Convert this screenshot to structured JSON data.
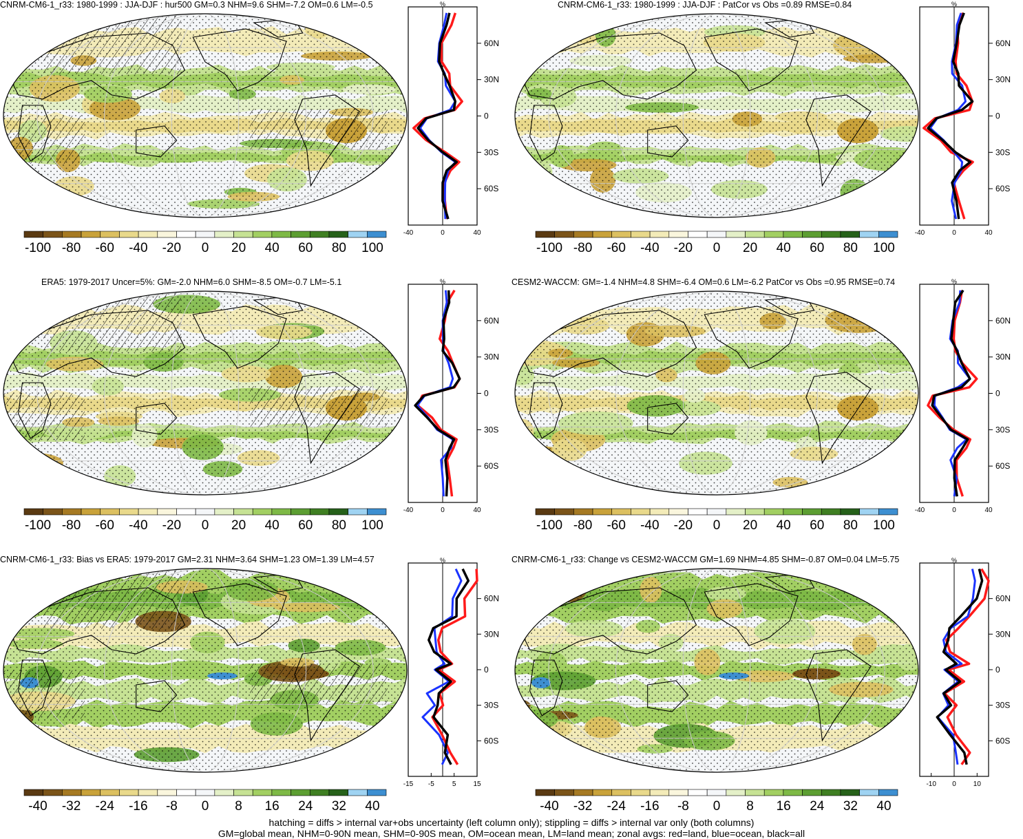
{
  "panels": [
    {
      "id": "p1",
      "title": "CNRM-CM6-1_r33: 1980-1999 : JJA-DJF : hur500 GM=0.3 NHM=9.6 SHM=-7.2 OM=0.6 LM=-0.5",
      "hatched": true,
      "zonal_unit": "%",
      "zonal_xticks": [
        "-40",
        "0",
        "40"
      ],
      "zonal_xlim": [
        -40,
        40
      ],
      "lat_ticks": [
        "60N",
        "30N",
        "0",
        "30S",
        "60S"
      ],
      "cbar_labels": [
        "-100",
        "-80",
        "-60",
        "-40",
        "-20",
        "0",
        "20",
        "40",
        "60",
        "80",
        "100"
      ]
    },
    {
      "id": "p2",
      "title": "CNRM-CM6-1_r33: 1980-1999 : JJA-DJF : PatCor vs Obs =0.89 RMSE=0.84",
      "hatched": false,
      "zonal_unit": "%",
      "zonal_xticks": [
        "-40",
        "0",
        "40"
      ],
      "zonal_xlim": [
        -40,
        40
      ],
      "lat_ticks": [
        "60N",
        "30N",
        "0",
        "30S",
        "60S"
      ],
      "cbar_labels": [
        "-100",
        "-80",
        "-60",
        "-40",
        "-20",
        "0",
        "20",
        "40",
        "60",
        "80",
        "100"
      ]
    },
    {
      "id": "p3",
      "title": "ERA5: 1979-2017 Uncer=5%: GM=-2.0 NHM=6.0 SHM=-8.5 OM=-0.7 LM=-5.1",
      "hatched": true,
      "zonal_unit": "%",
      "zonal_xticks": [
        "-40",
        "0",
        "40"
      ],
      "zonal_xlim": [
        -40,
        40
      ],
      "lat_ticks": [
        "60N",
        "30N",
        "0",
        "30S",
        "60S"
      ],
      "cbar_labels": [
        "-100",
        "-80",
        "-60",
        "-40",
        "-20",
        "0",
        "20",
        "40",
        "60",
        "80",
        "100"
      ]
    },
    {
      "id": "p4",
      "title": "CESM2-WACCM: GM=-1.4 NHM=4.8 SHM=-6.4 OM=0.6 LM=-6.2 PatCor vs Obs =0.95 RMSE=0.74",
      "hatched": false,
      "zonal_unit": "%",
      "zonal_xticks": [
        "-40",
        "0",
        "40"
      ],
      "zonal_xlim": [
        -40,
        40
      ],
      "lat_ticks": [
        "60N",
        "30N",
        "0",
        "30S",
        "60S"
      ],
      "cbar_labels": [
        "-100",
        "-80",
        "-60",
        "-40",
        "-20",
        "0",
        "20",
        "40",
        "60",
        "80",
        "100"
      ]
    },
    {
      "id": "p5",
      "title": "CNRM-CM6-1_r33: Bias vs ERA5: 1979-2017 GM=2.31 NHM=3.64 SHM=1.23 OM=1.39 LM=4.57",
      "hatched": true,
      "zonal_unit": "%",
      "zonal_xticks": [
        "-15",
        "-5",
        "5",
        "15"
      ],
      "zonal_xlim": [
        -15,
        15
      ],
      "lat_ticks": [
        "60N",
        "30N",
        "0",
        "30S",
        "60S"
      ],
      "cbar_labels": [
        "-40",
        "-32",
        "-24",
        "-16",
        "-8",
        "0",
        "8",
        "16",
        "24",
        "32",
        "40"
      ]
    },
    {
      "id": "p6",
      "title": "CNRM-CM6-1_r33: Change vs CESM2-WACCM GM=1.69 NHM=4.85 SHM=-0.87 OM=0.04 LM=5.75",
      "hatched": false,
      "zonal_unit": "%",
      "zonal_xticks": [
        "-10",
        "0",
        "10"
      ],
      "zonal_xlim": [
        -15,
        15
      ],
      "lat_ticks": [
        "60N",
        "30N",
        "0",
        "30S",
        "60S"
      ],
      "cbar_labels": [
        "-40",
        "-32",
        "-24",
        "-16",
        "-8",
        "0",
        "8",
        "16",
        "24",
        "32",
        "40"
      ]
    }
  ],
  "colors": {
    "palette": [
      "#5a3a12",
      "#7b5419",
      "#a67a23",
      "#c9a23a",
      "#dcc060",
      "#e9d98b",
      "#f3ebb8",
      "#faf6dd",
      "#ffffff",
      "#f4f6f8",
      "#e4f0c8",
      "#c6e294",
      "#a2cf62",
      "#7eb946",
      "#5c9e32",
      "#3f7f22",
      "#26611a",
      "#9fd3f2",
      "#3d8fd1"
    ],
    "land_line": "#ff1a1a",
    "ocean_line": "#1a33ff",
    "all_line": "#000000"
  },
  "footer": {
    "line1": "hatching = diffs > internal var+obs uncertainty (left column only); stippling = diffs > internal var only (both columns)",
    "line2": "GM=global mean, NHM=0-90N mean, SHM=0-90S mean, OM=ocean mean, LM=land mean; zonal avgs: red=land, blue=ocean, black=all"
  }
}
